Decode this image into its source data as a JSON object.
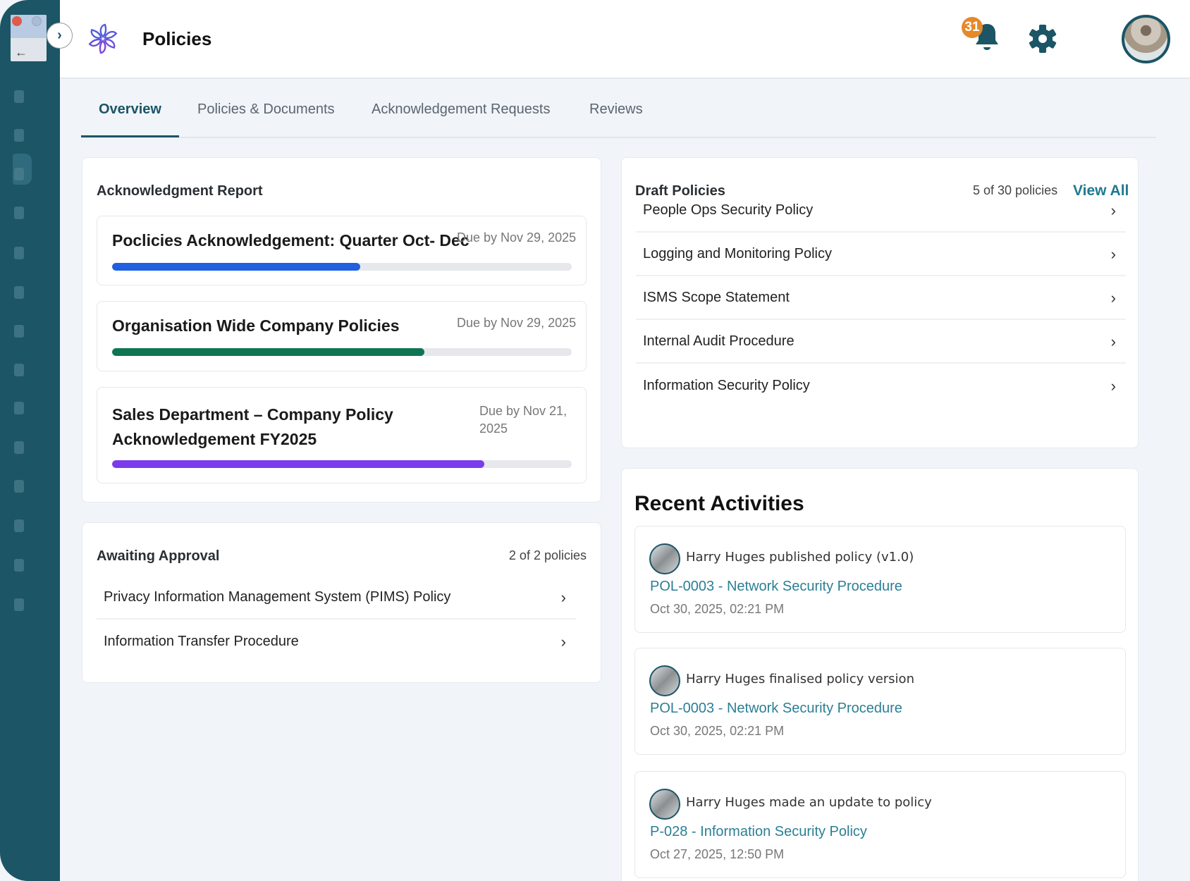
{
  "header": {
    "title": "Policies",
    "notification_count": "31"
  },
  "tabs": [
    {
      "label": "Overview",
      "active": true
    },
    {
      "label": "Policies & Documents"
    },
    {
      "label": "Acknowledgement Requests"
    },
    {
      "label": "Reviews"
    }
  ],
  "acknowledgment_report": {
    "title": "Acknowledgment Report",
    "items": [
      {
        "title": "Poclicies Acknowledgement: Quarter Oct- Dec",
        "due": "Due by Nov 29, 2025",
        "progress": 0.54,
        "color": "#1f5fe0"
      },
      {
        "title": "Organisation Wide Company Policies",
        "due": "Due by Nov 29, 2025",
        "progress": 0.68,
        "color": "#0f7454"
      },
      {
        "title": "Sales Department – Company Policy Acknowledgement FY2025",
        "due": "Due by Nov 21, 2025",
        "progress": 0.81,
        "color": "#7c3aed"
      }
    ]
  },
  "awaiting_approval": {
    "title": "Awaiting Approval",
    "count": "2 of 2 policies",
    "items": [
      "Privacy Information Management System (PIMS) Policy",
      "Information Transfer Procedure"
    ]
  },
  "draft_policies": {
    "title": "Draft Policies",
    "count": "5 of 30 policies",
    "view_all": "View All",
    "items": [
      "People Ops Security Policy",
      "Logging and Monitoring Policy",
      "ISMS Scope Statement",
      "Internal Audit Procedure",
      "Information Security Policy"
    ]
  },
  "recent_activities": {
    "title": "Recent Activities",
    "items": [
      {
        "text": "Harry Huges published policy (v1.0)",
        "link": "POL-0003 - Network Security Procedure",
        "time": "Oct 30, 2025, 02:21 PM"
      },
      {
        "text": "Harry Huges finalised policy version",
        "link": "POL-0003 - Network Security Procedure",
        "time": "Oct 30, 2025, 02:21 PM"
      },
      {
        "text": "Harry Huges made an update to policy",
        "link": "P-028 - Information Security Policy",
        "time": "Oct 27, 2025, 12:50 PM"
      }
    ]
  },
  "colors": {
    "sidebar": "#1b5566",
    "accent": "#1f7a8f",
    "badge": "#e5892a"
  }
}
